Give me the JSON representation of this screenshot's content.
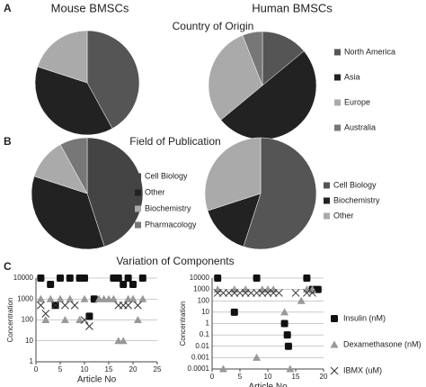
{
  "figure": {
    "panels": [
      "A",
      "B",
      "C"
    ],
    "columns": [
      "Mouse BMSCs",
      "Human BMSCs"
    ]
  },
  "chart_data": [
    {
      "type": "pie",
      "title": "Country of Origin",
      "categories": [
        "North America",
        "Asia",
        "Europe",
        "Australia"
      ],
      "values": [
        42,
        38,
        20,
        0
      ],
      "colors": [
        "#555555",
        "#222222",
        "#aaaaaa",
        "#777777"
      ],
      "legend": "right"
    },
    {
      "type": "pie",
      "values": [
        14,
        50,
        30,
        6
      ],
      "colors": [
        "#555555",
        "#222222",
        "#aaaaaa",
        "#777777"
      ]
    },
    {
      "type": "pie",
      "title": "Field of Publication",
      "categories": [
        "Cell Biology",
        "Other",
        "Biochemistry",
        "Pharmacology"
      ],
      "values": [
        45,
        35,
        12,
        8
      ],
      "colors": [
        "#444444",
        "#222222",
        "#aaaaaa",
        "#777777"
      ],
      "legend": "right"
    },
    {
      "type": "pie",
      "categories": [
        "Cell Biology",
        "Biochemistry",
        "Other"
      ],
      "values": [
        55,
        15,
        30
      ],
      "colors": [
        "#555555",
        "#222222",
        "#aaaaaa"
      ],
      "legend": "right"
    },
    {
      "type": "scatter",
      "title": "Variation of Components",
      "xlabel": "Article No",
      "ylabel": "Concentration",
      "log_y": true,
      "grid": true,
      "xlim": [
        0,
        25
      ],
      "xticks": [
        0,
        5,
        10,
        15,
        20,
        25
      ],
      "ylim": [
        1,
        10000
      ],
      "yticks": [
        1,
        10,
        100,
        1000,
        10000
      ],
      "series": [
        {
          "marker": "square",
          "color": "#111111",
          "x": [
            1,
            3,
            4,
            5,
            7,
            9,
            10,
            11,
            12,
            16,
            17,
            18,
            19,
            20,
            22
          ],
          "values": [
            10000,
            5000,
            500,
            10000,
            10000,
            10000,
            10000,
            150,
            1000,
            10000,
            10000,
            5000,
            10000,
            5000,
            10000
          ]
        },
        {
          "marker": "triangle",
          "color": "#999999",
          "x": [
            1,
            2,
            3,
            5,
            6,
            7,
            9,
            10,
            13,
            14,
            15,
            16,
            17,
            18,
            19,
            20,
            21,
            22
          ],
          "values": [
            1000,
            100,
            1000,
            1000,
            100,
            1000,
            100,
            1000,
            1000,
            1000,
            1000,
            1000,
            10,
            10,
            1000,
            1000,
            100,
            1000
          ]
        },
        {
          "marker": "x",
          "color": "#333333",
          "x": [
            1,
            2,
            4,
            6,
            8,
            10,
            11,
            17,
            18,
            19,
            21
          ],
          "values": [
            500,
            200,
            500,
            500,
            500,
            100,
            50,
            500,
            500,
            500,
            500
          ]
        }
      ]
    },
    {
      "type": "scatter",
      "xlabel": "Article No",
      "ylabel": "Concentration",
      "log_y": true,
      "grid": true,
      "legend": "right",
      "xlim": [
        0,
        20
      ],
      "xticks": [
        0,
        5,
        10,
        15,
        20
      ],
      "ylim": [
        0.0001,
        10000
      ],
      "yticks": [
        0.0001,
        0.001,
        0.01,
        0.1,
        1,
        10,
        100,
        1000,
        10000
      ],
      "series": [
        {
          "name": "Insulin (nM)",
          "marker": "square",
          "color": "#111111",
          "x": [
            1,
            4,
            8,
            13,
            13.5,
            13.7,
            17,
            18,
            19
          ],
          "values": [
            10000,
            10,
            10000,
            1,
            0.1,
            0.01,
            10000,
            1000,
            1000
          ]
        },
        {
          "name": "Dexamethasone (nM)",
          "marker": "triangle",
          "color": "#999999",
          "x": [
            1,
            2,
            4,
            6,
            8,
            9,
            10,
            11,
            13,
            14,
            16,
            17,
            18
          ],
          "values": [
            1000,
            0.0001,
            1000,
            1000,
            0.001,
            1000,
            1000,
            1000,
            10,
            0.0001,
            100,
            1000,
            1000
          ]
        },
        {
          "name": "IBMX (uM)",
          "marker": "x",
          "color": "#333333",
          "x": [
            1,
            2,
            3,
            4,
            5,
            6,
            7,
            8,
            9,
            10,
            11,
            12,
            15,
            17,
            18
          ],
          "values": [
            500,
            500,
            500,
            500,
            500,
            500,
            500,
            500,
            500,
            500,
            500,
            500,
            500,
            500,
            500
          ]
        }
      ]
    }
  ]
}
